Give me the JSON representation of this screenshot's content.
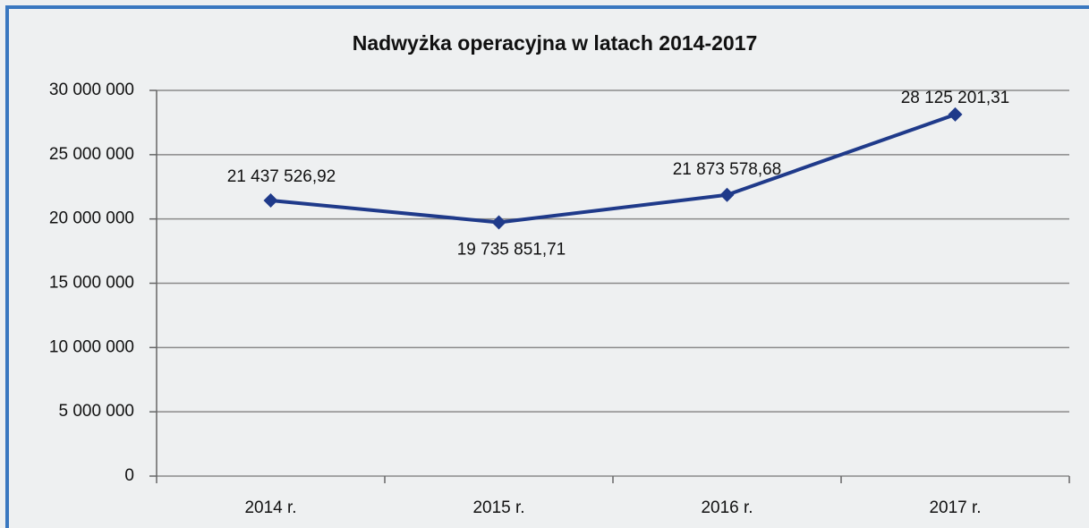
{
  "chart_data": {
    "type": "line",
    "title": "Nadwyżka operacyjna w latach 2014-2017",
    "categories": [
      "2014 r.",
      "2015 r.",
      "2016 r.",
      "2017 r."
    ],
    "series": [
      {
        "name": "Nadwyżka operacyjna",
        "color": "#1f3a8a",
        "values": [
          21437526.92,
          19735851.71,
          21873578.68,
          28125201.31
        ],
        "value_labels": [
          "21 437 526,92",
          "19 735 851,71",
          "21 873 578,68",
          "28 125 201,31"
        ]
      }
    ],
    "ylim": [
      0,
      30000000
    ],
    "yticks": [
      {
        "value": 0,
        "label": "0"
      },
      {
        "value": 5000000,
        "label": "5 000 000"
      },
      {
        "value": 10000000,
        "label": "10 000 000"
      },
      {
        "value": 15000000,
        "label": "15 000 000"
      },
      {
        "value": 20000000,
        "label": "20 000 000"
      },
      {
        "value": 25000000,
        "label": "25 000 000"
      },
      {
        "value": 30000000,
        "label": "30 000 000"
      }
    ],
    "grid": true
  }
}
